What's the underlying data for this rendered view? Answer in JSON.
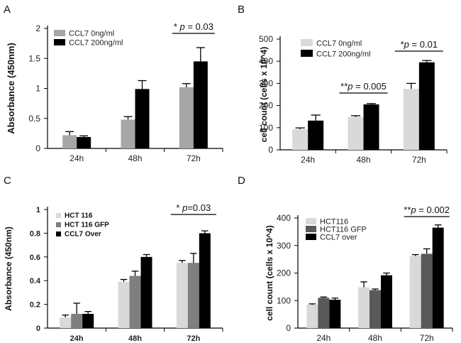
{
  "chart_data": [
    {
      "type": "bar",
      "panel": "A",
      "ylabel": "Absorbance (450nm)",
      "categories": [
        "24h",
        "48h",
        "72h"
      ],
      "ylim": [
        0,
        2
      ],
      "yticks": [
        "0",
        "0.5",
        "1",
        "1.5",
        "2"
      ],
      "series": [
        {
          "name": "CCL7 0ng/ml",
          "color": "#a6a6a6",
          "values": [
            0.22,
            0.48,
            1.02
          ],
          "errors": [
            0.06,
            0.05,
            0.06
          ]
        },
        {
          "name": "CCL7 200ng/ml",
          "color": "#000000",
          "values": [
            0.19,
            0.99,
            1.45
          ],
          "errors": [
            0.02,
            0.14,
            0.23
          ]
        }
      ],
      "annotations": [
        {
          "text": "* p = 0.03",
          "category": "72h"
        }
      ]
    },
    {
      "type": "bar",
      "panel": "B",
      "ylabel": "cell count (cells x 10^4)",
      "categories": [
        "24h",
        "48h",
        "72h"
      ],
      "ylim": [
        0,
        500
      ],
      "yticks": [
        "0",
        "100",
        "200",
        "300",
        "400",
        "500"
      ],
      "series": [
        {
          "name": "CCL7 0ng/ml",
          "color": "#d9d9d9",
          "values": [
            93,
            148,
            275
          ],
          "errors": [
            6,
            6,
            25
          ]
        },
        {
          "name": "CCL7 200ng/ml",
          "color": "#000000",
          "values": [
            132,
            205,
            395
          ],
          "errors": [
            25,
            4,
            8
          ]
        }
      ],
      "annotations": [
        {
          "text": "**p = 0.005",
          "category": "48h"
        },
        {
          "text": "*p = 0.01",
          "category": "72h"
        }
      ]
    },
    {
      "type": "bar",
      "panel": "C",
      "ylabel": "Absorbance (450nm)",
      "categories": [
        "24h",
        "48h",
        "72h"
      ],
      "ylim": [
        0,
        1
      ],
      "yticks": [
        "0",
        "0.2",
        "0.4",
        "0.6",
        "0.8",
        "1"
      ],
      "series": [
        {
          "name": "HCT 116",
          "color": "#d9d9d9",
          "values": [
            0.09,
            0.39,
            0.55
          ],
          "errors": [
            0.02,
            0.02,
            0.02
          ]
        },
        {
          "name": "HCT 116 GFP",
          "color": "#7f7f7f",
          "values": [
            0.12,
            0.44,
            0.55
          ],
          "errors": [
            0.09,
            0.04,
            0.08
          ]
        },
        {
          "name": "CCL7 Over",
          "color": "#000000",
          "values": [
            0.12,
            0.6,
            0.8
          ],
          "errors": [
            0.02,
            0.02,
            0.02
          ]
        }
      ],
      "annotations": [
        {
          "text": "* p=0.03",
          "category": "72h"
        }
      ]
    },
    {
      "type": "bar",
      "panel": "D",
      "ylabel": "cell count (cells x 10^4)",
      "categories": [
        "24h",
        "48h",
        "72h"
      ],
      "ylim": [
        0,
        400
      ],
      "yticks": [
        "0",
        "100",
        "200",
        "300",
        "400"
      ],
      "series": [
        {
          "name": "HCT116",
          "color": "#d9d9d9",
          "values": [
            85,
            148,
            262
          ],
          "errors": [
            3,
            20,
            5
          ]
        },
        {
          "name": "HCT116 GFP",
          "color": "#595959",
          "values": [
            110,
            138,
            270
          ],
          "errors": [
            3,
            4,
            18
          ]
        },
        {
          "name": "CCL7 over",
          "color": "#000000",
          "values": [
            103,
            192,
            365
          ],
          "errors": [
            6,
            8,
            10
          ]
        }
      ],
      "annotations": [
        {
          "text": "**p = 0.002",
          "category": "72h"
        }
      ]
    }
  ]
}
